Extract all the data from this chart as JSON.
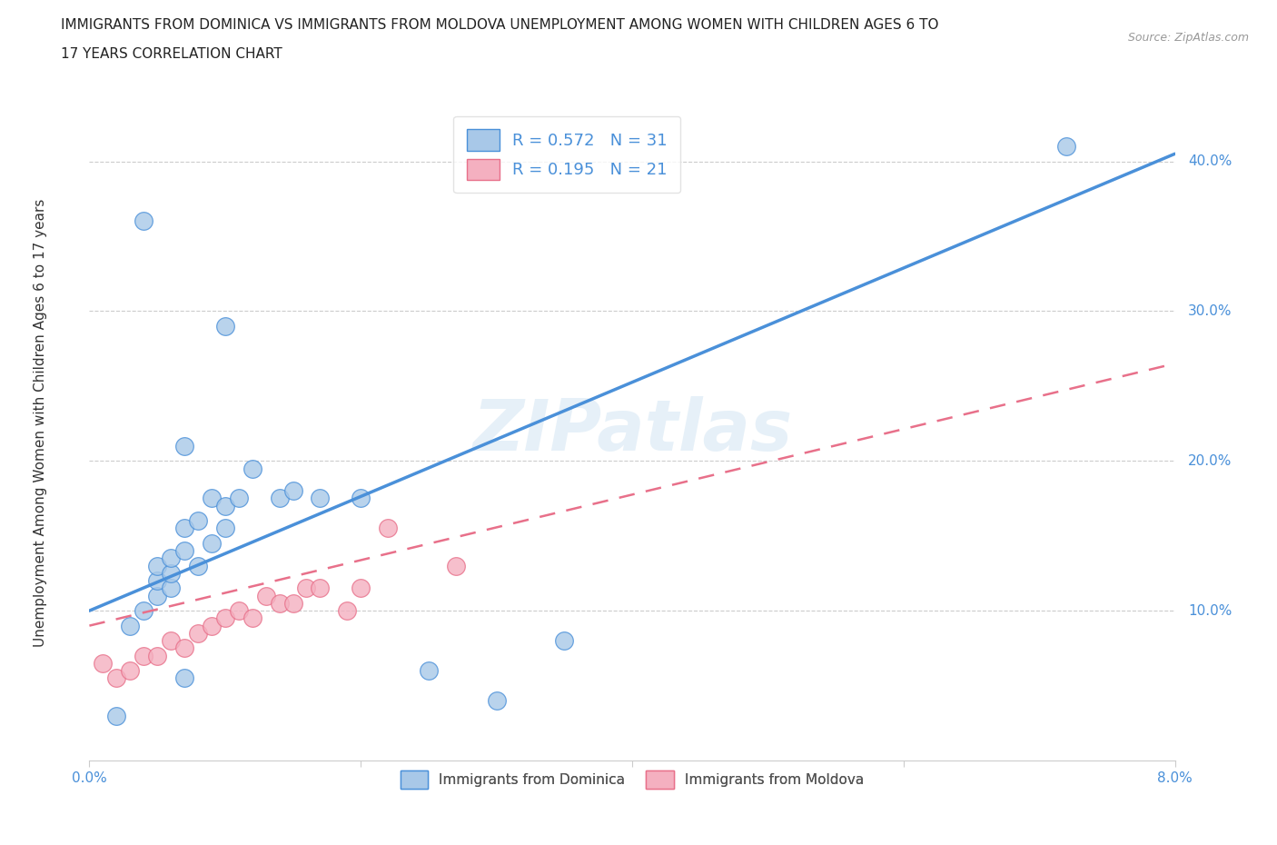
{
  "title_line1": "IMMIGRANTS FROM DOMINICA VS IMMIGRANTS FROM MOLDOVA UNEMPLOYMENT AMONG WOMEN WITH CHILDREN AGES 6 TO",
  "title_line2": "17 YEARS CORRELATION CHART",
  "source": "Source: ZipAtlas.com",
  "ylabel": "Unemployment Among Women with Children Ages 6 to 17 years",
  "xlim": [
    0.0,
    0.08
  ],
  "ylim": [
    0.0,
    0.44
  ],
  "ytick_labels_right": [
    "10.0%",
    "20.0%",
    "30.0%",
    "40.0%"
  ],
  "ytick_vals_right": [
    0.1,
    0.2,
    0.3,
    0.4
  ],
  "r_dominica": 0.572,
  "n_dominica": 31,
  "r_moldova": 0.195,
  "n_moldova": 21,
  "dominica_color": "#a8c8e8",
  "moldova_color": "#f4b0c0",
  "dominica_line_color": "#4a90d9",
  "moldova_line_color": "#e8708a",
  "watermark": "ZIPatlas",
  "dominica_line_x0": 0.0,
  "dominica_line_y0": 0.1,
  "dominica_line_x1": 0.08,
  "dominica_line_y1": 0.405,
  "moldova_line_x0": 0.0,
  "moldova_line_y0": 0.09,
  "moldova_line_x1": 0.08,
  "moldova_line_y1": 0.265,
  "dominica_scatter_x": [
    0.002,
    0.003,
    0.004,
    0.004,
    0.005,
    0.005,
    0.005,
    0.006,
    0.006,
    0.006,
    0.007,
    0.007,
    0.007,
    0.007,
    0.008,
    0.008,
    0.009,
    0.009,
    0.01,
    0.01,
    0.01,
    0.011,
    0.012,
    0.014,
    0.015,
    0.017,
    0.02,
    0.025,
    0.03,
    0.035,
    0.072
  ],
  "dominica_scatter_y": [
    0.03,
    0.09,
    0.1,
    0.36,
    0.11,
    0.12,
    0.13,
    0.115,
    0.125,
    0.135,
    0.055,
    0.14,
    0.155,
    0.21,
    0.13,
    0.16,
    0.145,
    0.175,
    0.155,
    0.17,
    0.29,
    0.175,
    0.195,
    0.175,
    0.18,
    0.175,
    0.175,
    0.06,
    0.04,
    0.08,
    0.41
  ],
  "moldova_scatter_x": [
    0.001,
    0.002,
    0.003,
    0.004,
    0.005,
    0.006,
    0.007,
    0.008,
    0.009,
    0.01,
    0.011,
    0.012,
    0.013,
    0.014,
    0.015,
    0.016,
    0.017,
    0.019,
    0.02,
    0.022,
    0.027
  ],
  "moldova_scatter_y": [
    0.065,
    0.055,
    0.06,
    0.07,
    0.07,
    0.08,
    0.075,
    0.085,
    0.09,
    0.095,
    0.1,
    0.095,
    0.11,
    0.105,
    0.105,
    0.115,
    0.115,
    0.1,
    0.115,
    0.155,
    0.13
  ]
}
